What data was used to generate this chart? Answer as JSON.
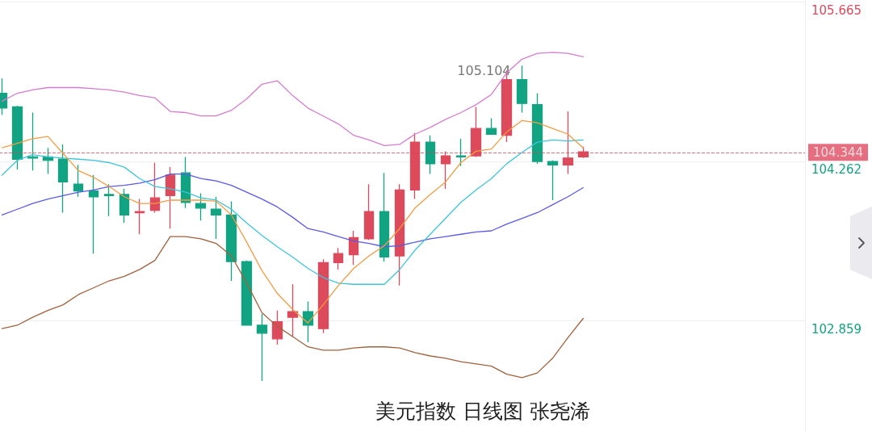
{
  "chart_data": {
    "type": "candlestick",
    "title": "美元指数 日线图 张尧浠",
    "categories": [
      null,
      null,
      null,
      null,
      null,
      null,
      null,
      null,
      null,
      null,
      null,
      null,
      null,
      null,
      null,
      null,
      null,
      null,
      null,
      null,
      null,
      null,
      null,
      null,
      null,
      null,
      null,
      null,
      null,
      null,
      null,
      null,
      null,
      null,
      null,
      null,
      null,
      null,
      null
    ],
    "ohlc": [
      [
        104.86,
        104.99,
        104.67,
        104.73
      ],
      [
        104.74,
        104.75,
        104.19,
        104.28
      ],
      [
        104.3,
        104.69,
        104.18,
        104.29
      ],
      [
        104.3,
        104.38,
        104.15,
        104.27
      ],
      [
        104.28,
        104.41,
        103.81,
        104.08
      ],
      [
        104.06,
        104.23,
        103.95,
        104.0
      ],
      [
        104.0,
        104.14,
        103.45,
        103.95
      ],
      [
        103.97,
        104.06,
        103.78,
        103.96
      ],
      [
        103.97,
        104.02,
        103.72,
        103.79
      ],
      [
        103.81,
        103.93,
        103.62,
        103.82
      ],
      [
        103.83,
        104.25,
        103.81,
        103.94
      ],
      [
        103.96,
        104.21,
        103.67,
        104.14
      ],
      [
        104.16,
        104.3,
        103.85,
        103.9
      ],
      [
        103.89,
        103.98,
        103.74,
        103.85
      ],
      [
        103.84,
        103.95,
        103.58,
        103.79
      ],
      [
        103.79,
        103.91,
        103.21,
        103.38
      ],
      [
        103.38,
        103.39,
        102.82,
        102.82
      ],
      [
        102.82,
        102.92,
        102.33,
        102.75
      ],
      [
        102.7,
        102.95,
        102.65,
        102.85
      ],
      [
        102.89,
        103.18,
        102.72,
        102.94
      ],
      [
        102.94,
        103.03,
        102.67,
        102.82
      ],
      [
        102.79,
        103.4,
        102.75,
        103.37
      ],
      [
        103.37,
        103.5,
        103.31,
        103.45
      ],
      [
        103.44,
        103.65,
        103.35,
        103.59
      ],
      [
        103.58,
        104.06,
        103.57,
        103.82
      ],
      [
        103.82,
        104.16,
        103.38,
        103.42
      ],
      [
        103.43,
        104.06,
        103.17,
        104.01
      ],
      [
        104.01,
        104.51,
        103.93,
        104.43
      ],
      [
        104.43,
        104.49,
        104.15,
        104.24
      ],
      [
        104.24,
        104.35,
        104.02,
        104.31
      ],
      [
        104.31,
        104.46,
        104.22,
        104.3
      ],
      [
        104.31,
        104.74,
        104.3,
        104.55
      ],
      [
        104.55,
        104.64,
        104.5,
        104.5
      ],
      [
        104.49,
        105.06,
        104.43,
        104.98
      ],
      [
        104.98,
        105.104,
        104.69,
        104.77
      ],
      [
        104.76,
        104.86,
        104.24,
        104.26
      ],
      [
        104.26,
        104.27,
        103.92,
        104.23
      ],
      [
        104.23,
        104.7,
        104.15,
        104.29
      ],
      [
        104.3,
        104.39,
        104.29,
        104.344
      ]
    ],
    "colors": [
      "#12a382",
      "#12a382",
      "#12a382",
      "#12a382",
      "#12a382",
      "#12a382",
      "#12a382",
      "#12a382",
      "#12a382",
      "#dc4a5c",
      "#dc4a5c",
      "#dc4a5c",
      "#12a382",
      "#12a382",
      "#12a382",
      "#12a382",
      "#12a382",
      "#12a382",
      "#dc4a5c",
      "#dc4a5c",
      "#12a382",
      "#dc4a5c",
      "#dc4a5c",
      "#dc4a5c",
      "#dc4a5c",
      "#12a382",
      "#dc4a5c",
      "#dc4a5c",
      "#12a382",
      "#dc4a5c",
      "#12a382",
      "#dc4a5c",
      "#12a382",
      "#dc4a5c",
      "#12a382",
      "#12a382",
      "#12a382",
      "#dc4a5c",
      "#dc4a5c"
    ],
    "series": [
      {
        "type": "line",
        "color": "#d67ccf",
        "values": [
          104.79,
          104.86,
          104.89,
          104.91,
          104.91,
          104.91,
          104.9,
          104.89,
          104.87,
          104.84,
          104.82,
          104.7,
          104.69,
          104.66,
          104.66,
          104.71,
          104.81,
          104.94,
          104.97,
          104.84,
          104.73,
          104.66,
          104.59,
          104.49,
          104.45,
          104.4,
          104.41,
          104.5,
          104.56,
          104.63,
          104.69,
          104.76,
          104.85,
          105.04,
          105.16,
          105.21,
          105.22,
          105.21,
          105.18
        ]
      },
      {
        "type": "line",
        "color": "#5a5ae6",
        "values": [
          103.79,
          103.84,
          103.89,
          103.93,
          103.96,
          103.99,
          104.01,
          104.04,
          104.05,
          104.07,
          104.1,
          104.15,
          104.15,
          104.11,
          104.09,
          104.05,
          103.99,
          103.93,
          103.86,
          103.77,
          103.67,
          103.64,
          103.6,
          103.56,
          103.54,
          103.51,
          103.52,
          103.55,
          103.58,
          103.6,
          103.62,
          103.64,
          103.65,
          103.71,
          103.76,
          103.81,
          103.88,
          103.95,
          104.03
        ]
      },
      {
        "type": "line",
        "color": "#a1613d",
        "values": [
          102.79,
          102.82,
          102.89,
          102.95,
          103.0,
          103.09,
          103.15,
          103.21,
          103.25,
          103.31,
          103.39,
          103.6,
          103.6,
          103.58,
          103.54,
          103.43,
          103.19,
          102.93,
          102.81,
          102.72,
          102.63,
          102.6,
          102.6,
          102.62,
          102.63,
          102.63,
          102.62,
          102.58,
          102.55,
          102.53,
          102.5,
          102.48,
          102.46,
          102.39,
          102.36,
          102.4,
          102.53,
          102.71,
          102.88
        ]
      },
      {
        "type": "line",
        "color": "#3ec4da",
        "values": [
          104.14,
          104.27,
          104.32,
          104.3,
          104.29,
          104.28,
          104.27,
          104.25,
          104.21,
          104.11,
          104.04,
          104.02,
          103.99,
          103.94,
          103.92,
          103.84,
          103.72,
          103.61,
          103.51,
          103.42,
          103.32,
          103.24,
          103.19,
          103.18,
          103.18,
          103.18,
          103.31,
          103.48,
          103.62,
          103.76,
          103.9,
          104.01,
          104.11,
          104.24,
          104.34,
          104.43,
          104.45,
          104.44,
          104.45
        ]
      },
      {
        "type": "line",
        "color": "#f39c45",
        "values": [
          104.38,
          104.42,
          104.46,
          104.48,
          104.33,
          104.18,
          104.12,
          104.04,
          103.95,
          103.89,
          103.89,
          103.92,
          103.92,
          103.92,
          103.91,
          103.79,
          103.55,
          103.3,
          103.1,
          102.96,
          102.84,
          103.0,
          103.17,
          103.32,
          103.43,
          103.52,
          103.67,
          103.85,
          103.97,
          104.08,
          104.25,
          104.35,
          104.37,
          104.52,
          104.62,
          104.6,
          104.55,
          104.5,
          104.38
        ]
      }
    ],
    "ylim": [
      101.89,
      105.68
    ],
    "yticks": [
      102.859,
      104.262,
      105.665
    ],
    "tick_labels": "y",
    "grid": "y",
    "marker": "none",
    "line_style": "solid",
    "ref_lines": [
      {
        "axis": "y",
        "value": 104.344,
        "label": "104.344",
        "color": "#dc3f55",
        "line_style": "dashed"
      }
    ],
    "annotations": [
      "105.104"
    ]
  }
}
